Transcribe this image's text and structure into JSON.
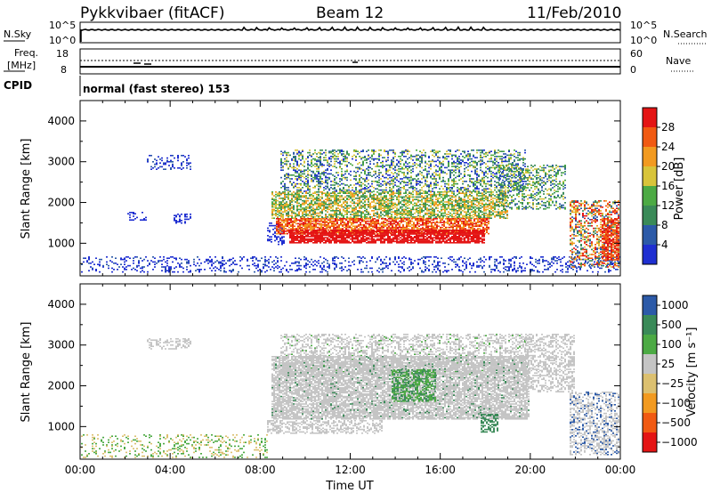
{
  "header": {
    "station": "Pykkvibaer (fitACF)",
    "beam": "Beam 12",
    "date": "11/Feb/2010"
  },
  "noise_panel": {
    "left_label": "N.Sky",
    "left_ticks": [
      "10^5",
      "10^0"
    ],
    "right_ticks": [
      "10^5",
      "10^0"
    ],
    "right_label": "N.Search"
  },
  "freq_panel": {
    "label_line1": "Freq.",
    "label_line2": "[MHz]",
    "left_ticks": [
      "18",
      "8"
    ],
    "right_ticks": [
      "60",
      "0"
    ],
    "right_label": "Nave"
  },
  "cpid": {
    "label": "CPID",
    "text": "normal (fast stereo) 153"
  },
  "colors": {
    "power_scale": [
      "#1f2fd1",
      "#2c5aa8",
      "#3a8a58",
      "#4caa44",
      "#d8c43a",
      "#f29a20",
      "#f15a12",
      "#e41414"
    ],
    "velocity_scale": [
      "#e41414",
      "#f15a12",
      "#f29a20",
      "#dcc070",
      "#c4c4c4",
      "#4caa44",
      "#3a8a58",
      "#2c5aa8"
    ],
    "gray_scatter": "#c4c4c4"
  },
  "chart_data": [
    {
      "type": "heatmap",
      "title": "",
      "ylabel": "Slant Range [km]",
      "xlabel": "",
      "x_ticks": [
        "00:00",
        "04:00",
        "08:00",
        "12:00",
        "16:00",
        "20:00",
        "00:00"
      ],
      "y_ticks": [
        "1000",
        "2000",
        "3000",
        "4000"
      ],
      "ylim": [
        200,
        4500
      ],
      "colorbar": {
        "label": "Power [dB]",
        "ticks": [
          "4",
          "8",
          "12",
          "16",
          "20",
          "24",
          "28"
        ]
      }
    },
    {
      "type": "heatmap",
      "title": "",
      "ylabel": "Slant Range [km]",
      "xlabel": "Time UT",
      "x_ticks": [
        "00:00",
        "04:00",
        "08:00",
        "12:00",
        "16:00",
        "20:00",
        "00:00"
      ],
      "y_ticks": [
        "1000",
        "2000",
        "3000",
        "4000"
      ],
      "ylim": [
        200,
        4500
      ],
      "colorbar": {
        "label": "Velocity [m s⁻¹]",
        "ticks": [
          "1000",
          "500",
          "100",
          "25",
          "−25",
          "−100",
          "−500",
          "−1000"
        ]
      }
    }
  ]
}
